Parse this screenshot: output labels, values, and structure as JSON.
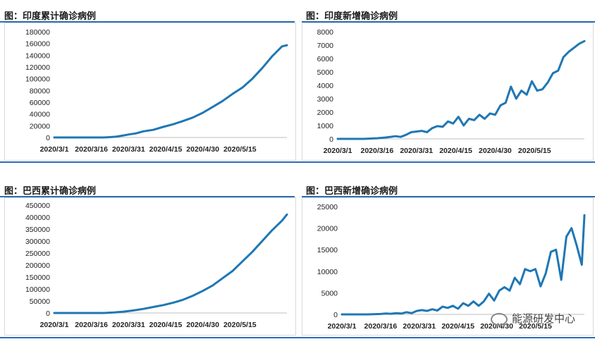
{
  "colors": {
    "line": "#1f77b4",
    "accent": "#2e6db4"
  },
  "watermark": {
    "text": "能源研发中心",
    "icon": "wechat-icon"
  },
  "chart_data": [
    {
      "type": "line",
      "title": "图：印度累计确诊病例",
      "x_ticks": [
        "2020/3/1",
        "2020/3/16",
        "2020/3/31",
        "2020/4/15",
        "2020/4/30",
        "2020/5/15"
      ],
      "ylim": [
        0,
        180000
      ],
      "y_ticks": [
        0,
        20000,
        40000,
        60000,
        80000,
        100000,
        120000,
        140000,
        160000,
        180000
      ],
      "x": [
        0,
        5,
        10,
        15,
        20,
        22,
        25,
        28,
        30,
        33,
        36,
        40,
        44,
        48,
        52,
        56,
        60,
        64,
        68,
        72,
        76,
        80,
        84,
        88,
        92,
        94
      ],
      "y": [
        0,
        0,
        0,
        0,
        0,
        500,
        1300,
        3500,
        5000,
        7000,
        10500,
        13000,
        18000,
        22500,
        28000,
        34000,
        42000,
        52000,
        62000,
        74000,
        85000,
        100000,
        118000,
        138000,
        155000,
        157000
      ]
    },
    {
      "type": "line",
      "title": "图：印度新增确诊病例",
      "x_ticks": [
        "2020/3/1",
        "2020/3/16",
        "2020/3/31",
        "2020/4/15",
        "2020/4/30",
        "2020/5/15"
      ],
      "ylim": [
        0,
        8000
      ],
      "y_ticks": [
        0,
        1000,
        2000,
        3000,
        4000,
        5000,
        6000,
        7000,
        8000
      ],
      "x": [
        0,
        5,
        10,
        15,
        18,
        20,
        22,
        24,
        26,
        28,
        30,
        32,
        34,
        36,
        38,
        40,
        42,
        44,
        46,
        48,
        50,
        52,
        54,
        56,
        58,
        60,
        62,
        64,
        66,
        68,
        70,
        72,
        74,
        76,
        78,
        80,
        82,
        84,
        86,
        88,
        90,
        92,
        94
      ],
      "y": [
        0,
        0,
        0,
        50,
        100,
        150,
        200,
        150,
        300,
        500,
        550,
        600,
        500,
        800,
        950,
        900,
        1300,
        1150,
        1650,
        1000,
        1500,
        1400,
        1800,
        1500,
        1900,
        1800,
        2500,
        2700,
        3900,
        3000,
        3600,
        3300,
        4300,
        3600,
        3700,
        4200,
        4900,
        5100,
        6100,
        6500,
        6800,
        7100,
        7300
      ]
    },
    {
      "type": "line",
      "title": "图：巴西累计确诊病例",
      "x_ticks": [
        "2020/3/1",
        "2020/3/16",
        "2020/3/31",
        "2020/4/15",
        "2020/4/30",
        "2020/5/15"
      ],
      "ylim": [
        0,
        450000
      ],
      "y_ticks": [
        0,
        50000,
        100000,
        150000,
        200000,
        250000,
        300000,
        350000,
        400000,
        450000
      ],
      "x": [
        0,
        5,
        10,
        15,
        20,
        24,
        28,
        32,
        36,
        40,
        44,
        48,
        52,
        56,
        60,
        64,
        68,
        72,
        76,
        80,
        84,
        88,
        92,
        94
      ],
      "y": [
        0,
        0,
        0,
        0,
        0,
        2000,
        5500,
        10500,
        17000,
        25000,
        33000,
        43000,
        55000,
        72000,
        92000,
        115000,
        145000,
        175000,
        215000,
        255000,
        300000,
        345000,
        385000,
        411000
      ]
    },
    {
      "type": "line",
      "title": "图：巴西新增确诊病例",
      "x_ticks": [
        "2020/3/1",
        "2020/3/16",
        "2020/3/31",
        "2020/4/15",
        "2020/4/30",
        "2020/5/15"
      ],
      "ylim": [
        0,
        25000
      ],
      "y_ticks": [
        0,
        5000,
        10000,
        15000,
        20000,
        25000
      ],
      "x": [
        0,
        5,
        10,
        15,
        17,
        19,
        21,
        23,
        25,
        27,
        29,
        31,
        33,
        35,
        37,
        39,
        41,
        43,
        45,
        47,
        49,
        51,
        53,
        55,
        57,
        59,
        61,
        63,
        65,
        67,
        69,
        71,
        73,
        75,
        77,
        79,
        81,
        83,
        85,
        87,
        89,
        91,
        93,
        94
      ],
      "y": [
        0,
        0,
        0,
        100,
        200,
        150,
        300,
        200,
        500,
        300,
        800,
        1000,
        800,
        1200,
        900,
        1800,
        1500,
        2000,
        1300,
        2600,
        2000,
        3000,
        2000,
        3000,
        4800,
        3200,
        5500,
        6300,
        5500,
        8500,
        7000,
        10500,
        10000,
        10500,
        6500,
        9500,
        14500,
        15000,
        8000,
        18000,
        20000,
        16000,
        11500,
        23000
      ]
    }
  ]
}
